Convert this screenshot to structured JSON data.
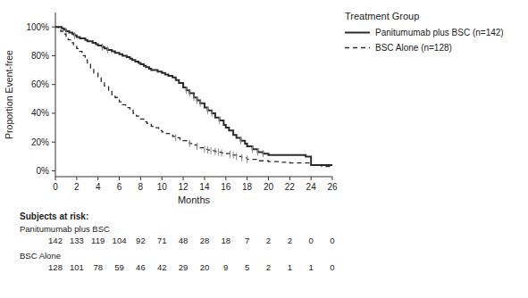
{
  "chart_data": {
    "type": "step",
    "xlabel": "Months",
    "ylabel": "Proportion Event-free",
    "legend_title": "Treatment Group",
    "legend": "right",
    "xlim": [
      0,
      26
    ],
    "ylim": [
      -0.04,
      1.1
    ],
    "xticks": [
      0,
      2,
      4,
      6,
      8,
      10,
      12,
      14,
      16,
      18,
      20,
      22,
      24,
      26
    ],
    "yticks": [
      {
        "value": 0.0,
        "label": "0%"
      },
      {
        "value": 0.2,
        "label": "20%"
      },
      {
        "value": 0.4,
        "label": "40%"
      },
      {
        "value": 0.6,
        "label": "60%"
      },
      {
        "value": 0.8,
        "label": "80%"
      },
      {
        "value": 1.0,
        "label": "100%"
      }
    ],
    "series": [
      {
        "name": "Panitumumab plus BSC (n=142)",
        "color": "#2b2b2b",
        "line_style": "solid",
        "x": [
          0,
          0.4,
          0.6,
          0.8,
          1.0,
          1.1,
          1.3,
          1.5,
          1.6,
          1.8,
          2.0,
          2.1,
          2.3,
          2.5,
          2.8,
          3.0,
          3.2,
          3.5,
          3.8,
          4.0,
          4.2,
          4.4,
          4.6,
          4.9,
          5.1,
          5.3,
          5.6,
          5.8,
          6.0,
          6.3,
          6.5,
          6.7,
          7.0,
          7.2,
          7.5,
          7.8,
          8.0,
          8.3,
          8.5,
          8.8,
          9.0,
          9.3,
          9.6,
          10.0,
          10.3,
          10.6,
          11.0,
          11.3,
          11.6,
          12.0,
          12.3,
          12.6,
          13.0,
          13.3,
          13.6,
          14.0,
          14.3,
          14.7,
          15.0,
          15.4,
          15.8,
          16.0,
          16.3,
          16.7,
          17.0,
          17.4,
          17.8,
          18.0,
          18.5,
          19.0,
          19.5,
          20.0,
          23.5,
          24.0,
          26.0
        ],
        "values": [
          1.0,
          1.0,
          0.99,
          0.98,
          0.97,
          0.97,
          0.96,
          0.96,
          0.95,
          0.94,
          0.93,
          0.93,
          0.92,
          0.92,
          0.91,
          0.9,
          0.9,
          0.89,
          0.88,
          0.87,
          0.87,
          0.86,
          0.85,
          0.84,
          0.84,
          0.83,
          0.82,
          0.82,
          0.81,
          0.8,
          0.8,
          0.79,
          0.78,
          0.77,
          0.76,
          0.75,
          0.74,
          0.73,
          0.72,
          0.71,
          0.7,
          0.7,
          0.69,
          0.68,
          0.67,
          0.66,
          0.65,
          0.63,
          0.61,
          0.58,
          0.56,
          0.54,
          0.51,
          0.49,
          0.47,
          0.44,
          0.42,
          0.4,
          0.37,
          0.35,
          0.32,
          0.3,
          0.28,
          0.25,
          0.23,
          0.21,
          0.19,
          0.17,
          0.15,
          0.13,
          0.12,
          0.11,
          0.1,
          0.04,
          0.04
        ],
        "censors": {
          "color": "#888888",
          "x": [
            1.0,
            1.8,
            4.4,
            4.9,
            12.3,
            12.6,
            13.0,
            13.3,
            13.6,
            14.3,
            14.7,
            15.4,
            17.4,
            18.5,
            19.0,
            19.5
          ],
          "y": [
            0.97,
            0.94,
            0.86,
            0.84,
            0.56,
            0.54,
            0.51,
            0.49,
            0.47,
            0.42,
            0.4,
            0.35,
            0.21,
            0.15,
            0.13,
            0.12
          ]
        }
      },
      {
        "name": "BSC Alone (n=128)",
        "color": "#2b2b2b",
        "line_style": "dashed",
        "x": [
          0,
          0.3,
          0.5,
          0.8,
          1.0,
          1.2,
          1.5,
          1.7,
          2.0,
          2.2,
          2.5,
          2.8,
          3.0,
          3.3,
          3.6,
          4.0,
          4.3,
          4.6,
          5.0,
          5.3,
          5.6,
          6.0,
          6.3,
          6.6,
          7.0,
          7.3,
          7.6,
          8.0,
          8.3,
          8.6,
          9.0,
          9.3,
          9.7,
          10.0,
          10.3,
          10.7,
          11.0,
          11.3,
          11.7,
          12.0,
          12.3,
          12.6,
          13.0,
          13.3,
          13.6,
          14.0,
          14.3,
          14.6,
          15.0,
          15.3,
          15.6,
          16.0,
          16.4,
          16.7,
          17.0,
          17.5,
          18.0,
          19.0,
          20.0,
          21.0,
          22.0,
          24.0,
          25.0,
          26.0
        ],
        "values": [
          1.0,
          0.99,
          0.97,
          0.95,
          0.93,
          0.91,
          0.89,
          0.87,
          0.85,
          0.83,
          0.8,
          0.77,
          0.74,
          0.71,
          0.68,
          0.65,
          0.62,
          0.59,
          0.56,
          0.53,
          0.51,
          0.48,
          0.46,
          0.44,
          0.42,
          0.4,
          0.38,
          0.36,
          0.34,
          0.33,
          0.31,
          0.3,
          0.28,
          0.27,
          0.26,
          0.25,
          0.24,
          0.23,
          0.22,
          0.21,
          0.2,
          0.19,
          0.18,
          0.17,
          0.16,
          0.15,
          0.145,
          0.14,
          0.135,
          0.13,
          0.125,
          0.12,
          0.115,
          0.11,
          0.1,
          0.09,
          0.08,
          0.07,
          0.065,
          0.06,
          0.055,
          0.04,
          0.03,
          0.03
        ],
        "censors": {
          "color": "#888888",
          "x": [
            11.3,
            12.6,
            13.3,
            14.0,
            14.3,
            14.6,
            15.0,
            15.3,
            15.6,
            16.4,
            16.7,
            17.0,
            17.5,
            18.0
          ],
          "y": [
            0.23,
            0.19,
            0.17,
            0.15,
            0.145,
            0.14,
            0.135,
            0.13,
            0.125,
            0.115,
            0.11,
            0.1,
            0.09,
            0.08
          ]
        }
      }
    ],
    "risk_table": {
      "title": "Subjects at risk:",
      "times": [
        0,
        2,
        4,
        6,
        8,
        10,
        12,
        14,
        16,
        18,
        20,
        22,
        24,
        26
      ],
      "rows": [
        {
          "name": "Panitumumab plus BSC",
          "values": [
            142,
            133,
            119,
            104,
            92,
            71,
            48,
            28,
            18,
            7,
            2,
            2,
            0,
            0
          ]
        },
        {
          "name": "BSC Alone",
          "values": [
            128,
            101,
            78,
            59,
            46,
            42,
            29,
            20,
            9,
            5,
            2,
            1,
            1,
            0
          ]
        }
      ]
    }
  }
}
